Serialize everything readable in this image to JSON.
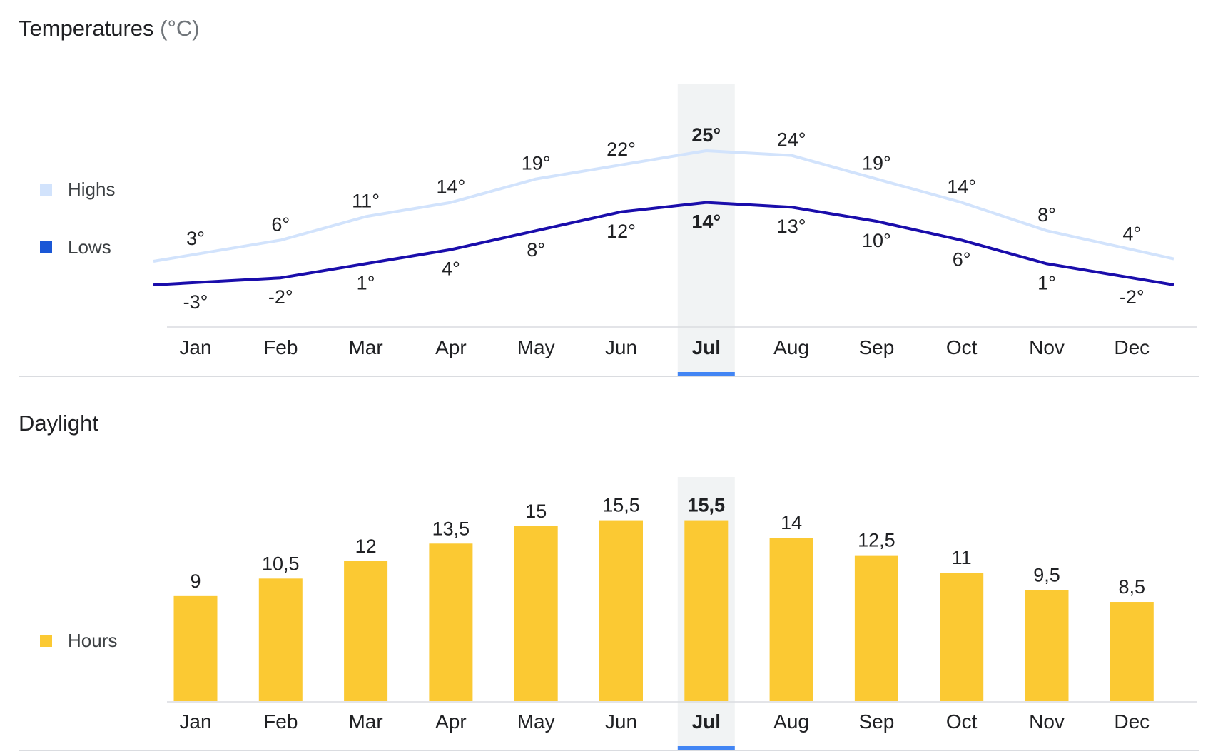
{
  "temperatures": {
    "title": "Temperatures",
    "unit": "(°C)",
    "legend": {
      "highs_label": "Highs",
      "highs_color": "#d2e3fc",
      "lows_label": "Lows",
      "lows_color": "#1a57d6"
    }
  },
  "daylight": {
    "title": "Daylight",
    "legend": {
      "hours_label": "Hours",
      "hours_color": "#fbc933"
    }
  },
  "selected_month": "Jul",
  "colors": {
    "highs_line": "#d2e3fc",
    "lows_line": "#1a0dab",
    "bar": "#fbc933",
    "selection_band": "#f1f3f4",
    "selection_indicator": "#4285f4",
    "axis": "#dadce0"
  },
  "chart_data": [
    {
      "type": "line",
      "categories": [
        "Jan",
        "Feb",
        "Mar",
        "Apr",
        "May",
        "Jun",
        "Jul",
        "Aug",
        "Sep",
        "Oct",
        "Nov",
        "Dec"
      ],
      "series": [
        {
          "name": "Highs",
          "values": [
            3,
            6,
            11,
            14,
            19,
            22,
            25,
            24,
            19,
            14,
            8,
            4
          ],
          "labels": [
            "3°",
            "6°",
            "11°",
            "14°",
            "19°",
            "22°",
            "25°",
            "24°",
            "19°",
            "14°",
            "8°",
            "4°"
          ]
        },
        {
          "name": "Lows",
          "values": [
            -3,
            -2,
            1,
            4,
            8,
            12,
            14,
            13,
            10,
            6,
            1,
            -2
          ],
          "labels": [
            "-3°",
            "-2°",
            "1°",
            "4°",
            "8°",
            "12°",
            "14°",
            "13°",
            "10°",
            "6°",
            "1°",
            "-2°"
          ]
        }
      ],
      "title": "Temperatures (°C)",
      "xlabel": "",
      "ylabel": "",
      "legend": "left"
    },
    {
      "type": "bar",
      "categories": [
        "Jan",
        "Feb",
        "Mar",
        "Apr",
        "May",
        "Jun",
        "Jul",
        "Aug",
        "Sep",
        "Oct",
        "Nov",
        "Dec"
      ],
      "series": [
        {
          "name": "Hours",
          "values": [
            9,
            10.5,
            12,
            13.5,
            15,
            15.5,
            15.5,
            14,
            12.5,
            11,
            9.5,
            8.5
          ],
          "labels": [
            "9",
            "10,5",
            "12",
            "13,5",
            "15",
            "15,5",
            "15,5",
            "14",
            "12,5",
            "11",
            "9,5",
            "8,5"
          ]
        }
      ],
      "title": "Daylight",
      "xlabel": "",
      "ylabel": "",
      "legend": "left"
    }
  ]
}
